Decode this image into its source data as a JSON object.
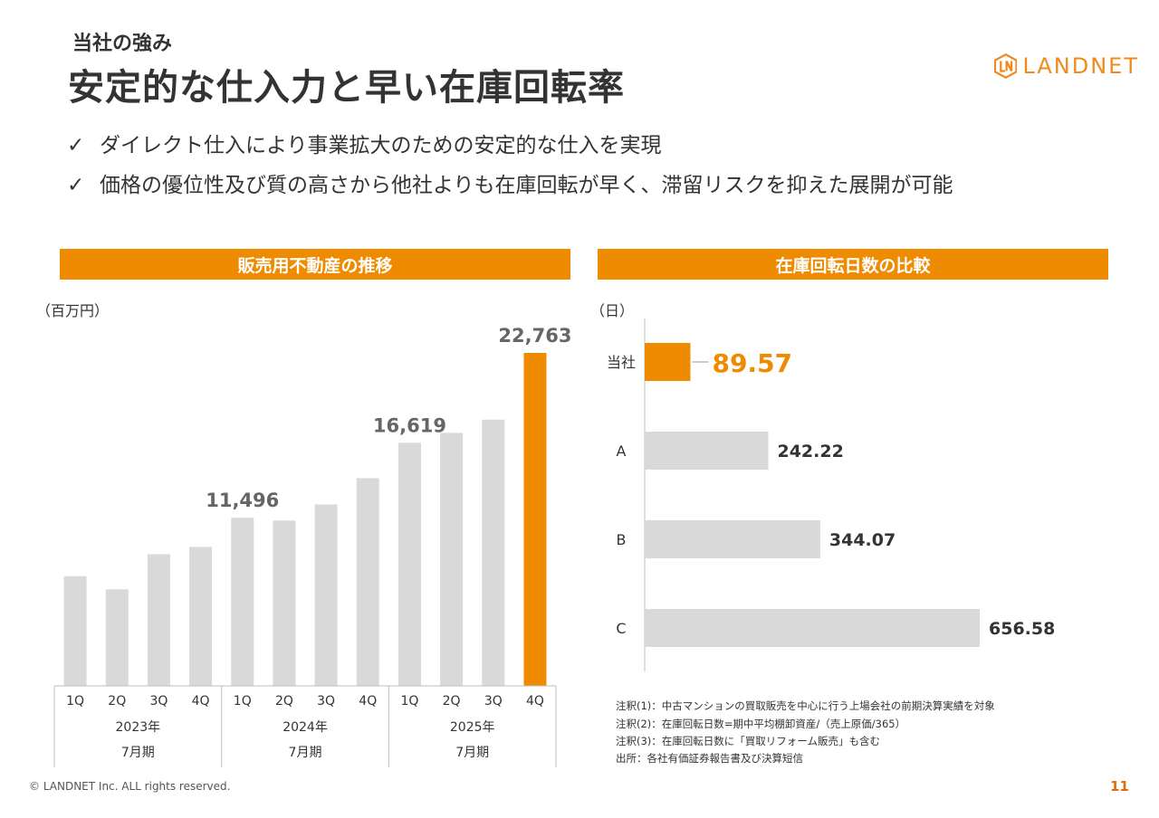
{
  "header": {
    "subtitle": "当社の強み",
    "title": "安定的な仕入力と早い在庫回転率",
    "logo_text": "LANDNET"
  },
  "bullets": [
    {
      "check": "✓",
      "text": "ダイレクト仕入により事業拡大のための安定的な仕入を実現"
    },
    {
      "check": "✓",
      "text": "価格の優位性及び質の高さから他社よりも在庫回転が早く、滞留リスクを抑えた展開が可能"
    }
  ],
  "left_panel": {
    "title": "販売用不動産の推移",
    "unit": "（百万円）"
  },
  "right_panel": {
    "title": "在庫回転日数の比較",
    "unit": "（日）"
  },
  "chart_data": [
    {
      "type": "bar",
      "title": "販売用不動産の推移",
      "ylabel": "（百万円）",
      "categories": [
        "1Q",
        "2Q",
        "3Q",
        "4Q",
        "1Q",
        "2Q",
        "3Q",
        "4Q",
        "1Q",
        "2Q",
        "3Q",
        "4Q"
      ],
      "groups": [
        {
          "year": "2023年",
          "period": "7月期"
        },
        {
          "year": "2024年",
          "period": "7月期"
        },
        {
          "year": "2025年",
          "period": "7月期"
        }
      ],
      "values": [
        7500,
        6600,
        9000,
        9500,
        11496,
        11300,
        12400,
        14200,
        16619,
        17300,
        18200,
        22763
      ],
      "labels": [
        null,
        null,
        null,
        null,
        "11,496",
        null,
        null,
        null,
        "16,619",
        null,
        null,
        "22,763"
      ],
      "ylim": [
        0,
        22763
      ],
      "colors": {
        "default": "#d9d9d9",
        "highlight": "#ef8b00",
        "label": "#666666"
      },
      "highlight_index": 11
    },
    {
      "type": "bar",
      "orientation": "horizontal",
      "title": "在庫回転日数の比較",
      "xlabel": "（日）",
      "categories": [
        "当社",
        "A",
        "B",
        "C"
      ],
      "values": [
        89.57,
        242.22,
        344.07,
        656.58
      ],
      "labels": [
        "89.57",
        "242.22",
        "344.07",
        "656.58"
      ],
      "xlim": [
        0,
        656.58
      ],
      "colors": {
        "default": "#d9d9d9",
        "highlight": "#ef8b00",
        "label": "#333333"
      },
      "highlight_index": 0
    }
  ],
  "notes": [
    "注釈(1)：中古マンションの買取販売を中心に行う上場会社の前期決算実績を対象",
    "注釈(2)：在庫回転日数=期中平均棚卸資産/（売上原価/365）",
    "注釈(3)：在庫回転日数に「買取リフォーム販売」も含む",
    "出所：各社有価証券報告書及び決算短信"
  ],
  "footer": {
    "copyright": "© LANDNET Inc. ALL rights reserved.",
    "page": "11"
  }
}
